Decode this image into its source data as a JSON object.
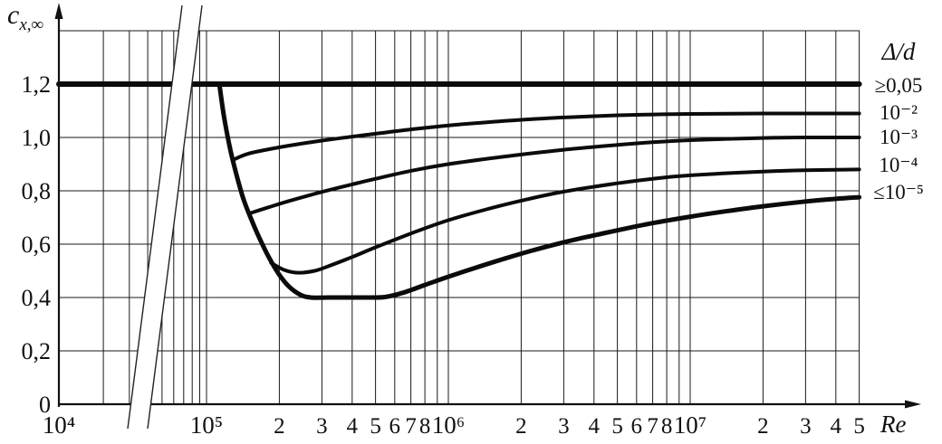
{
  "chart_data": {
    "type": "line",
    "title": "",
    "background": "#ffffff",
    "ink_color": "#111111",
    "x_axis": {
      "label": "Re",
      "scale": "log",
      "axis_break": {
        "after_value": 10000,
        "before_value": 100000
      },
      "ticks": [
        {
          "value": 10000,
          "label": "10⁴",
          "major": true
        },
        {
          "value": 100000,
          "label": "10⁵",
          "major": true
        },
        {
          "value": 200000,
          "label": "2",
          "major": false
        },
        {
          "value": 300000,
          "label": "3",
          "major": false
        },
        {
          "value": 400000,
          "label": "4",
          "major": false
        },
        {
          "value": 500000,
          "label": "5",
          "major": false
        },
        {
          "value": 600000,
          "label": "6",
          "major": false
        },
        {
          "value": 700000,
          "label": "7",
          "major": false
        },
        {
          "value": 800000,
          "label": "8",
          "major": false
        },
        {
          "value": 1000000,
          "label": "10⁶",
          "major": true
        },
        {
          "value": 2000000,
          "label": "2",
          "major": false
        },
        {
          "value": 3000000,
          "label": "3",
          "major": false
        },
        {
          "value": 4000000,
          "label": "4",
          "major": false
        },
        {
          "value": 5000000,
          "label": "5",
          "major": false
        },
        {
          "value": 6000000,
          "label": "6",
          "major": false
        },
        {
          "value": 7000000,
          "label": "7",
          "major": false
        },
        {
          "value": 8000000,
          "label": "8",
          "major": false
        },
        {
          "value": 10000000,
          "label": "10⁷",
          "major": true
        },
        {
          "value": 20000000,
          "label": "2",
          "major": false
        },
        {
          "value": 30000000,
          "label": "3",
          "major": false
        },
        {
          "value": 40000000,
          "label": "4",
          "major": false
        },
        {
          "value": 50000000,
          "label": "5",
          "major": false
        }
      ],
      "unlabeled_gridlines": [
        20000,
        30000,
        40000,
        50000,
        60000,
        70000,
        80000,
        90000,
        900000,
        9000000
      ]
    },
    "y_axis": {
      "label_main": "c",
      "label_sub": "x,∞",
      "range": [
        0,
        1.4
      ],
      "ticks": [
        {
          "value": 0,
          "label": "0"
        },
        {
          "value": 0.2,
          "label": "0,2"
        },
        {
          "value": 0.4,
          "label": "0,4"
        },
        {
          "value": 0.6,
          "label": "0,6"
        },
        {
          "value": 0.8,
          "label": "0,8"
        },
        {
          "value": 1.0,
          "label": "1,0"
        },
        {
          "value": 1.2,
          "label": "1,2"
        }
      ]
    },
    "legend": {
      "title": "Δ/d",
      "entries": [
        "≥0,05",
        "10⁻²",
        "10⁻³",
        "10⁻⁴",
        "≤10⁻⁵"
      ]
    },
    "series": [
      {
        "id": "ge-005",
        "name": "≥0,05",
        "points": [
          [
            10000,
            1.2
          ],
          [
            50000000,
            1.2
          ]
        ]
      },
      {
        "id": "1e-2",
        "name": "10⁻²",
        "points": [
          [
            128000,
            0.915
          ],
          [
            150000,
            0.94
          ],
          [
            200000,
            0.963
          ],
          [
            300000,
            0.988
          ],
          [
            500000,
            1.014
          ],
          [
            700000,
            1.03
          ],
          [
            1000000,
            1.045
          ],
          [
            1500000,
            1.058
          ],
          [
            2000000,
            1.066
          ],
          [
            3000000,
            1.075
          ],
          [
            5000000,
            1.083
          ],
          [
            7000000,
            1.086
          ],
          [
            10000000,
            1.088
          ],
          [
            20000000,
            1.09
          ],
          [
            30000000,
            1.09
          ],
          [
            50000000,
            1.09
          ]
        ]
      },
      {
        "id": "1e-3",
        "name": "10⁻³",
        "points": [
          [
            150000,
            0.715
          ],
          [
            180000,
            0.738
          ],
          [
            220000,
            0.762
          ],
          [
            300000,
            0.796
          ],
          [
            400000,
            0.824
          ],
          [
            500000,
            0.845
          ],
          [
            700000,
            0.875
          ],
          [
            1000000,
            0.9
          ],
          [
            1500000,
            0.922
          ],
          [
            2000000,
            0.936
          ],
          [
            3000000,
            0.954
          ],
          [
            5000000,
            0.972
          ],
          [
            7000000,
            0.982
          ],
          [
            10000000,
            0.99
          ],
          [
            20000000,
            0.998
          ],
          [
            30000000,
            1.0
          ],
          [
            50000000,
            1.0
          ]
        ]
      },
      {
        "id": "1e-4",
        "name": "10⁻⁴",
        "points": [
          [
            185000,
            0.53
          ],
          [
            210000,
            0.503
          ],
          [
            240000,
            0.493
          ],
          [
            280000,
            0.5
          ],
          [
            320000,
            0.518
          ],
          [
            400000,
            0.552
          ],
          [
            500000,
            0.588
          ],
          [
            700000,
            0.64
          ],
          [
            1000000,
            0.69
          ],
          [
            1500000,
            0.735
          ],
          [
            2000000,
            0.763
          ],
          [
            3000000,
            0.797
          ],
          [
            5000000,
            0.828
          ],
          [
            7000000,
            0.845
          ],
          [
            10000000,
            0.858
          ],
          [
            20000000,
            0.872
          ],
          [
            30000000,
            0.877
          ],
          [
            50000000,
            0.88
          ]
        ]
      },
      {
        "id": "le-1e-5",
        "name": "≤10⁻⁵",
        "points": [
          [
            113000,
            1.2
          ],
          [
            118000,
            1.08
          ],
          [
            125000,
            0.96
          ],
          [
            133000,
            0.86
          ],
          [
            142000,
            0.77
          ],
          [
            152000,
            0.7
          ],
          [
            165000,
            0.625
          ],
          [
            180000,
            0.555
          ],
          [
            200000,
            0.485
          ],
          [
            220000,
            0.44
          ],
          [
            245000,
            0.41
          ],
          [
            270000,
            0.4
          ],
          [
            320000,
            0.4
          ],
          [
            400000,
            0.4
          ],
          [
            480000,
            0.4
          ],
          [
            550000,
            0.402
          ],
          [
            650000,
            0.418
          ],
          [
            800000,
            0.447
          ],
          [
            1000000,
            0.478
          ],
          [
            1300000,
            0.512
          ],
          [
            1700000,
            0.545
          ],
          [
            2200000,
            0.575
          ],
          [
            3000000,
            0.607
          ],
          [
            4000000,
            0.633
          ],
          [
            5000000,
            0.652
          ],
          [
            7000000,
            0.679
          ],
          [
            10000000,
            0.703
          ],
          [
            14000000,
            0.723
          ],
          [
            20000000,
            0.742
          ],
          [
            30000000,
            0.76
          ],
          [
            40000000,
            0.77
          ],
          [
            50000000,
            0.776
          ]
        ]
      }
    ]
  }
}
